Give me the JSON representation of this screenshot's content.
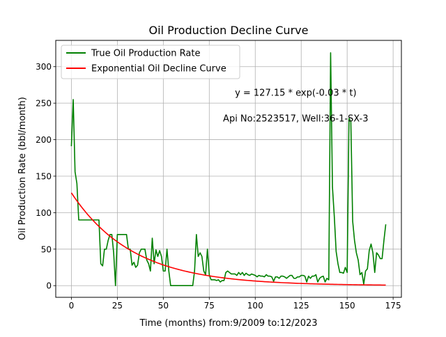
{
  "chart_data": {
    "type": "line",
    "title": "Oil Production Decline Curve",
    "xlabel": "Time (months) from:9/2009 to:12/2023",
    "ylabel": "Oil Production Rate (bbl/month)",
    "xlim": [
      -8.5,
      179.5
    ],
    "ylim": [
      -16,
      336
    ],
    "xticks": [
      0,
      25,
      50,
      75,
      100,
      125,
      150,
      175
    ],
    "yticks": [
      0,
      50,
      100,
      150,
      200,
      250,
      300
    ],
    "grid": true,
    "legend_position": "top-left",
    "annotations": [
      {
        "text": "y = 127.15 * exp(-0.03 * t)",
        "x": 122,
        "y": 260
      },
      {
        "text": "Api No:2523517, Well:36-1-SX-3",
        "x": 122,
        "y": 225
      }
    ],
    "series": [
      {
        "name": "True Oil Production Rate",
        "color": "#008000",
        "points": [
          [
            0,
            191
          ],
          [
            1,
            255
          ],
          [
            2,
            156
          ],
          [
            3,
            140
          ],
          [
            4,
            90
          ],
          [
            5,
            90
          ],
          [
            8,
            90
          ],
          [
            12,
            90
          ],
          [
            14,
            90
          ],
          [
            15,
            90
          ],
          [
            16,
            30
          ],
          [
            17,
            27
          ],
          [
            18,
            50
          ],
          [
            19,
            50
          ],
          [
            20,
            62
          ],
          [
            21,
            70
          ],
          [
            22,
            70
          ],
          [
            23,
            45
          ],
          [
            24,
            0
          ],
          [
            25,
            70
          ],
          [
            26,
            70
          ],
          [
            28,
            70
          ],
          [
            30,
            70
          ],
          [
            31,
            50
          ],
          [
            32,
            50
          ],
          [
            33,
            28
          ],
          [
            34,
            32
          ],
          [
            35,
            25
          ],
          [
            36,
            28
          ],
          [
            37,
            45
          ],
          [
            38,
            50
          ],
          [
            39,
            50
          ],
          [
            40,
            50
          ],
          [
            41,
            35
          ],
          [
            42,
            30
          ],
          [
            43,
            20
          ],
          [
            44,
            65
          ],
          [
            45,
            30
          ],
          [
            46,
            49
          ],
          [
            47,
            40
          ],
          [
            48,
            48
          ],
          [
            49,
            40
          ],
          [
            50,
            20
          ],
          [
            51,
            20
          ],
          [
            52,
            50
          ],
          [
            53,
            20
          ],
          [
            54,
            0
          ],
          [
            60,
            0
          ],
          [
            65,
            0
          ],
          [
            66,
            0
          ],
          [
            67,
            20
          ],
          [
            68,
            70
          ],
          [
            69,
            40
          ],
          [
            70,
            45
          ],
          [
            71,
            40
          ],
          [
            72,
            20
          ],
          [
            73,
            15
          ],
          [
            74,
            50
          ],
          [
            75,
            15
          ],
          [
            76,
            8
          ],
          [
            77,
            8
          ],
          [
            78,
            8
          ],
          [
            79,
            7
          ],
          [
            80,
            8
          ],
          [
            81,
            5
          ],
          [
            82,
            7
          ],
          [
            83,
            7
          ],
          [
            84,
            18
          ],
          [
            85,
            20
          ],
          [
            86,
            18
          ],
          [
            87,
            16
          ],
          [
            88,
            16
          ],
          [
            89,
            16
          ],
          [
            90,
            14
          ],
          [
            91,
            18
          ],
          [
            92,
            15
          ],
          [
            93,
            18
          ],
          [
            94,
            14
          ],
          [
            95,
            17
          ],
          [
            96,
            15
          ],
          [
            97,
            14
          ],
          [
            98,
            16
          ],
          [
            99,
            15
          ],
          [
            100,
            14
          ],
          [
            101,
            12
          ],
          [
            102,
            14
          ],
          [
            103,
            13
          ],
          [
            104,
            13
          ],
          [
            105,
            12
          ],
          [
            106,
            15
          ],
          [
            107,
            13
          ],
          [
            108,
            13
          ],
          [
            109,
            12
          ],
          [
            110,
            6
          ],
          [
            111,
            12
          ],
          [
            112,
            12
          ],
          [
            113,
            10
          ],
          [
            114,
            13
          ],
          [
            115,
            13
          ],
          [
            116,
            12
          ],
          [
            117,
            10
          ],
          [
            118,
            12
          ],
          [
            119,
            14
          ],
          [
            120,
            14
          ],
          [
            121,
            10
          ],
          [
            122,
            10
          ],
          [
            123,
            12
          ],
          [
            124,
            12
          ],
          [
            125,
            14
          ],
          [
            126,
            14
          ],
          [
            127,
            13
          ],
          [
            128,
            5
          ],
          [
            129,
            13
          ],
          [
            130,
            10
          ],
          [
            131,
            13
          ],
          [
            132,
            13
          ],
          [
            133,
            15
          ],
          [
            134,
            5
          ],
          [
            135,
            10
          ],
          [
            136,
            12
          ],
          [
            137,
            13
          ],
          [
            138,
            5
          ],
          [
            139,
            10
          ],
          [
            140,
            8
          ],
          [
            141,
            319
          ],
          [
            142,
            135
          ],
          [
            143,
            95
          ],
          [
            144,
            47
          ],
          [
            145,
            30
          ],
          [
            146,
            18
          ],
          [
            147,
            18
          ],
          [
            148,
            17
          ],
          [
            149,
            25
          ],
          [
            150,
            18
          ],
          [
            151,
            229
          ],
          [
            152,
            225
          ],
          [
            153,
            88
          ],
          [
            154,
            62
          ],
          [
            155,
            45
          ],
          [
            156,
            35
          ],
          [
            157,
            15
          ],
          [
            158,
            18
          ],
          [
            159,
            2
          ],
          [
            160,
            20
          ],
          [
            161,
            23
          ],
          [
            162,
            48
          ],
          [
            163,
            57
          ],
          [
            164,
            45
          ],
          [
            165,
            18
          ],
          [
            166,
            45
          ],
          [
            167,
            42
          ],
          [
            168,
            37
          ],
          [
            169,
            37
          ],
          [
            170,
            62
          ],
          [
            171,
            84
          ]
        ]
      },
      {
        "name": "Exponential Oil Decline Curve",
        "color": "#ff0000",
        "model": {
          "a": 127.15,
          "b": -0.03,
          "x_from": 0,
          "x_to": 171
        }
      }
    ]
  }
}
